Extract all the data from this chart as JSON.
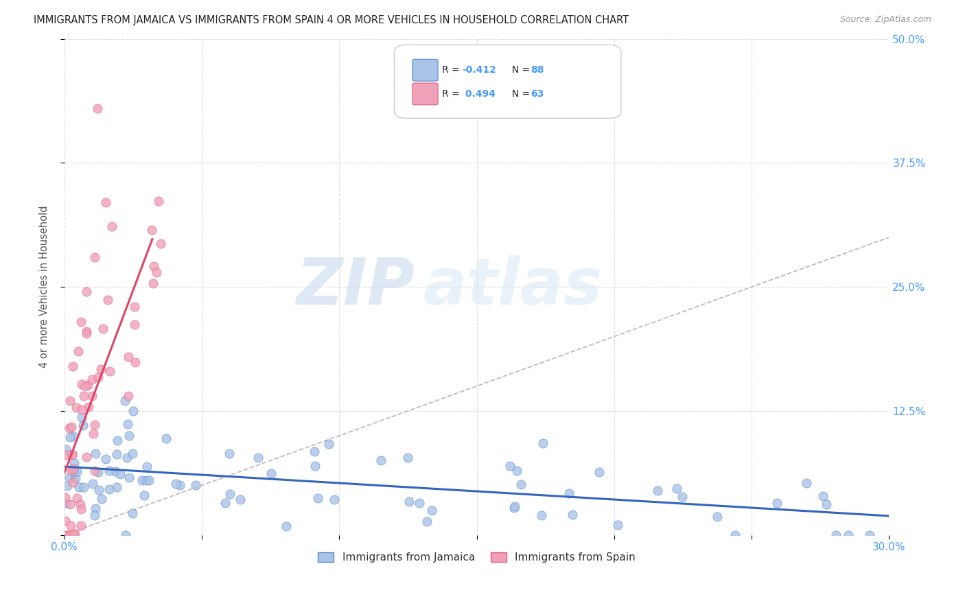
{
  "title": "IMMIGRANTS FROM JAMAICA VS IMMIGRANTS FROM SPAIN 4 OR MORE VEHICLES IN HOUSEHOLD CORRELATION CHART",
  "source": "Source: ZipAtlas.com",
  "ylabel_label": "4 or more Vehicles in Household",
  "xlim": [
    0.0,
    0.3
  ],
  "ylim": [
    0.0,
    0.5
  ],
  "legend_jamaica": "Immigrants from Jamaica",
  "legend_spain": "Immigrants from Spain",
  "R_jamaica": -0.412,
  "N_jamaica": 88,
  "R_spain": 0.494,
  "N_spain": 63,
  "color_jamaica": "#aac4e8",
  "color_spain": "#f0a0b8",
  "color_border_jamaica": "#5588cc",
  "color_border_spain": "#e06080",
  "color_line_jamaica": "#3366bb",
  "color_line_spain": "#dd4466",
  "color_diag": "#bbbbbb",
  "color_axis_labels": "#4499ff",
  "color_title": "#222222",
  "watermark_zip": "ZIP",
  "watermark_atlas": "atlas",
  "background_color": "#ffffff",
  "grid_color": "#dddddd",
  "x_tick_positions": [
    0.0,
    0.05,
    0.1,
    0.15,
    0.2,
    0.25,
    0.3
  ],
  "y_tick_positions": [
    0.0,
    0.125,
    0.25,
    0.375,
    0.5
  ],
  "seed": 12345
}
